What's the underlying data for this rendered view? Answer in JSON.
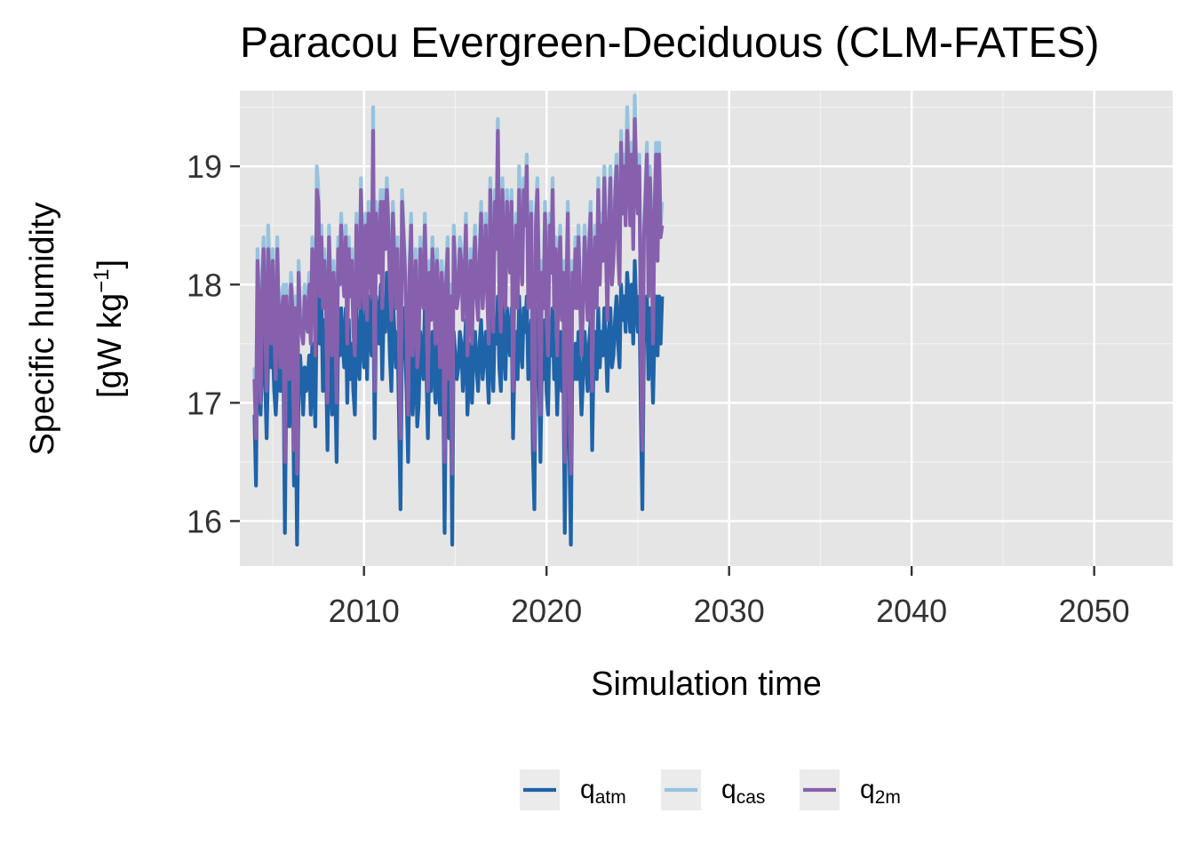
{
  "chart_data": {
    "type": "line",
    "title": "Paracou Evergreen-Deciduous (CLM-FATES)",
    "xlabel": "Simulation time",
    "ylabel_line1": "Specific humidity",
    "ylabel_unit_prefix": "[gW kg",
    "ylabel_unit_sup": "−1",
    "ylabel_unit_suffix": "]",
    "xlim": [
      2003.2,
      2054.3
    ],
    "ylim": [
      15.62,
      19.64
    ],
    "x_ticks": [
      2010,
      2020,
      2030,
      2040,
      2050
    ],
    "x_tick_labels": [
      "2010",
      "2020",
      "2030",
      "2040",
      "2050"
    ],
    "y_ticks": [
      16,
      17,
      18,
      19
    ],
    "y_tick_labels": [
      "16",
      "17",
      "18",
      "19"
    ],
    "grid": true,
    "legend_position": "bottom",
    "x_start": 2004.0,
    "x_step": 0.08333,
    "series": [
      {
        "name_main": "q",
        "name_sub": "atm",
        "color": "#1f63a8",
        "values": [
          16.9,
          16.3,
          17.8,
          17.1,
          16.9,
          17.3,
          17.9,
          17.2,
          16.7,
          17.4,
          17.7,
          17.3,
          17.5,
          17.1,
          16.9,
          17.2,
          17.7,
          17.1,
          17.3,
          17.4,
          15.9,
          17.3,
          17.2,
          16.8,
          17.2,
          17.3,
          16.3,
          17.1,
          15.8,
          17.1,
          17.4,
          17.2,
          16.9,
          17.3,
          17.1,
          17.2,
          17.4,
          16.9,
          17.5,
          17.2,
          16.8,
          17.9,
          18.0,
          17.5,
          17.9,
          17.1,
          17.7,
          17.4,
          16.6,
          17.6,
          17.3,
          16.9,
          17.4,
          17.2,
          16.5,
          17.6,
          17.4,
          17.8,
          17.5,
          17.3,
          17.8,
          17.0,
          17.7,
          17.2,
          17.5,
          17.1,
          16.9,
          17.8,
          17.4,
          17.2,
          17.9,
          17.5,
          17.3,
          17.8,
          17.2,
          17.9,
          17.6,
          17.4,
          18.1,
          16.7,
          17.9,
          17.7,
          17.5,
          18.0,
          17.2,
          17.8,
          17.6,
          18.1,
          17.9,
          17.4,
          17.1,
          17.9,
          17.6,
          17.3,
          17.6,
          16.9,
          16.1,
          17.6,
          17.8,
          17.5,
          17.1,
          16.5,
          17.4,
          17.8,
          16.9,
          17.2,
          17.5,
          16.8,
          17.0,
          17.6,
          17.4,
          17.2,
          17.8,
          17.3,
          16.7,
          17.4,
          17.1,
          17.6,
          17.3,
          17.0,
          17.5,
          17.2,
          16.9,
          17.5,
          17.3,
          15.9,
          17.4,
          17.6,
          16.7,
          17.3,
          15.8,
          17.6,
          17.4,
          17.2,
          17.3,
          17.6,
          17.5,
          17.1,
          17.4,
          17.7,
          16.9,
          17.2,
          17.5,
          17.0,
          17.4,
          17.6,
          17.3,
          17.1,
          17.5,
          17.7,
          17.2,
          17.4,
          17.6,
          17.3,
          17.0,
          17.8,
          17.4,
          17.1,
          17.7,
          17.5,
          17.9,
          17.3,
          17.1,
          17.9,
          17.5,
          17.2,
          17.8,
          17.6,
          17.4,
          17.8,
          16.7,
          17.4,
          17.6,
          17.2,
          17.9,
          17.5,
          17.3,
          17.8,
          17.6,
          17.9,
          17.2,
          17.5,
          17.7,
          16.6,
          16.1,
          17.6,
          17.8,
          17.3,
          16.5,
          17.4,
          17.2,
          17.7,
          17.1,
          16.9,
          17.6,
          17.4,
          17.8,
          17.2,
          17.5,
          16.9,
          17.4,
          17.6,
          17.1,
          17.4,
          15.9,
          17.3,
          17.7,
          16.6,
          15.8,
          17.4,
          17.2,
          17.5,
          17.2,
          17.6,
          17.3,
          16.9,
          17.2,
          17.6,
          17.4,
          17.1,
          17.5,
          17.7,
          16.6,
          17.4,
          17.6,
          17.2,
          17.8,
          17.3,
          17.6,
          17.4,
          17.8,
          17.5,
          17.1,
          17.6,
          17.8,
          17.3,
          17.4,
          17.7,
          17.9,
          17.5,
          17.3,
          18.0,
          17.7,
          17.9,
          17.6,
          18.1,
          17.9,
          17.6,
          18.0,
          17.5,
          18.2,
          17.8,
          17.6,
          17.9,
          16.9,
          16.1,
          17.5,
          17.7,
          17.9,
          17.2,
          17.8,
          17.5,
          17.0,
          17.6,
          17.9,
          17.4,
          17.9,
          17.5,
          17.9
        ]
      },
      {
        "name_main": "q",
        "name_sub": "cas",
        "color": "#96c3de",
        "values": [
          17.3,
          16.8,
          18.3,
          17.9,
          17.1,
          18.1,
          18.4,
          17.8,
          17.2,
          18.5,
          18.1,
          17.6,
          18.3,
          17.7,
          17.3,
          18.4,
          17.8,
          17.4,
          17.9,
          18.0,
          16.6,
          18.0,
          17.7,
          17.3,
          18.1,
          17.9,
          16.7,
          17.9,
          16.5,
          18.2,
          17.8,
          17.7,
          17.6,
          18.0,
          17.8,
          17.7,
          18.1,
          17.6,
          18.4,
          18.3,
          17.5,
          19.0,
          18.8,
          18.0,
          18.5,
          17.9,
          18.3,
          18.0,
          17.1,
          18.5,
          18.0,
          17.5,
          18.2,
          17.9,
          17.1,
          18.4,
          18.1,
          18.6,
          18.2,
          18.0,
          18.5,
          17.6,
          18.4,
          18.0,
          18.3,
          17.7,
          17.5,
          18.6,
          18.1,
          17.9,
          18.9,
          18.2,
          17.9,
          18.6,
          17.8,
          18.7,
          18.3,
          18.0,
          19.5,
          17.2,
          18.7,
          18.4,
          18.2,
          18.8,
          17.9,
          18.8,
          18.4,
          18.9,
          18.6,
          18.1,
          17.8,
          18.7,
          18.3,
          17.9,
          18.4,
          17.6,
          16.8,
          18.8,
          18.5,
          18.2,
          17.7,
          17.0,
          18.2,
          18.6,
          17.5,
          17.9,
          18.3,
          17.4,
          17.6,
          18.4,
          18.1,
          17.9,
          18.6,
          18.0,
          17.2,
          18.2,
          17.8,
          18.4,
          18.0,
          17.6,
          18.3,
          17.9,
          17.4,
          18.2,
          18.0,
          16.6,
          18.1,
          18.4,
          17.3,
          18.0,
          16.5,
          18.5,
          18.2,
          17.9,
          18.0,
          18.4,
          18.3,
          17.8,
          18.1,
          18.6,
          17.5,
          17.9,
          18.3,
          17.6,
          18.2,
          18.5,
          18.0,
          17.8,
          18.3,
          18.7,
          17.9,
          18.2,
          18.6,
          18.0,
          17.6,
          18.9,
          18.1,
          17.7,
          18.8,
          18.4,
          19.4,
          18.0,
          17.7,
          18.9,
          18.3,
          17.9,
          18.8,
          18.5,
          18.2,
          18.8,
          17.2,
          18.2,
          18.6,
          17.9,
          19.0,
          18.4,
          18.1,
          18.9,
          18.6,
          19.1,
          17.9,
          18.4,
          18.7,
          17.1,
          16.7,
          18.6,
          18.9,
          18.1,
          17.0,
          18.2,
          17.9,
          18.7,
          17.8,
          17.5,
          18.6,
          18.2,
          18.9,
          17.9,
          18.4,
          17.5,
          18.2,
          18.5,
          17.8,
          18.2,
          16.6,
          18.0,
          18.7,
          17.2,
          16.5,
          18.2,
          17.9,
          18.4,
          17.9,
          18.5,
          18.0,
          17.5,
          17.9,
          18.5,
          18.2,
          17.8,
          18.4,
          18.7,
          17.2,
          18.2,
          18.5,
          17.9,
          18.9,
          18.1,
          18.6,
          18.3,
          19.0,
          18.4,
          17.8,
          18.6,
          19.0,
          18.1,
          18.3,
          18.8,
          19.1,
          18.4,
          18.1,
          19.3,
          18.7,
          19.1,
          18.6,
          19.5,
          19.1,
          18.6,
          19.2,
          18.4,
          19.6,
          19.0,
          18.7,
          19.1,
          17.6,
          16.7,
          18.5,
          18.8,
          19.2,
          18.0,
          19.0,
          18.5,
          17.6,
          18.7,
          19.2,
          18.3,
          19.2,
          18.5,
          18.7
        ]
      },
      {
        "name_main": "q",
        "name_sub": "2m",
        "color": "#8760ad",
        "values": [
          17.2,
          16.7,
          18.2,
          17.8,
          17.0,
          17.9,
          18.3,
          17.7,
          17.1,
          18.3,
          18.0,
          17.5,
          18.2,
          17.6,
          17.2,
          18.3,
          17.7,
          17.3,
          17.8,
          17.9,
          16.5,
          17.9,
          17.6,
          17.2,
          18.0,
          17.8,
          16.6,
          17.8,
          16.4,
          18.1,
          17.7,
          17.6,
          17.5,
          17.9,
          17.7,
          17.6,
          18.0,
          17.5,
          18.3,
          18.2,
          17.4,
          18.8,
          18.7,
          17.9,
          18.4,
          17.8,
          18.2,
          17.9,
          17.0,
          18.4,
          17.9,
          17.4,
          18.1,
          17.8,
          17.0,
          18.3,
          18.0,
          18.5,
          18.1,
          17.9,
          18.4,
          17.5,
          18.3,
          17.9,
          18.2,
          17.6,
          17.4,
          18.5,
          18.0,
          17.8,
          18.8,
          18.1,
          17.8,
          18.5,
          17.7,
          18.6,
          18.2,
          17.9,
          19.3,
          17.1,
          18.6,
          18.3,
          18.1,
          18.7,
          17.8,
          18.7,
          18.3,
          18.8,
          18.5,
          18.0,
          17.7,
          18.6,
          18.2,
          17.8,
          18.3,
          17.5,
          16.7,
          18.7,
          18.4,
          18.1,
          17.6,
          16.9,
          18.1,
          18.5,
          17.4,
          17.8,
          18.2,
          17.3,
          17.5,
          18.3,
          18.0,
          17.8,
          18.5,
          17.9,
          17.1,
          18.1,
          17.7,
          18.3,
          17.9,
          17.5,
          18.2,
          17.8,
          17.3,
          18.1,
          17.9,
          16.5,
          18.0,
          18.3,
          17.2,
          17.9,
          16.4,
          18.4,
          18.1,
          17.8,
          17.9,
          18.3,
          18.2,
          17.7,
          18.0,
          18.5,
          17.4,
          17.8,
          18.2,
          17.5,
          18.1,
          18.4,
          17.9,
          17.7,
          18.2,
          18.6,
          17.8,
          18.1,
          18.5,
          17.9,
          17.5,
          18.8,
          18.0,
          17.6,
          18.7,
          18.3,
          19.3,
          17.9,
          17.6,
          18.8,
          18.2,
          17.8,
          18.7,
          18.4,
          18.1,
          18.7,
          17.1,
          18.1,
          18.5,
          17.8,
          18.8,
          18.3,
          18.0,
          18.8,
          18.5,
          19.0,
          17.8,
          18.3,
          18.6,
          17.0,
          16.6,
          18.5,
          18.8,
          18.0,
          16.9,
          18.1,
          17.8,
          18.6,
          17.7,
          17.4,
          18.5,
          18.1,
          18.8,
          17.8,
          18.3,
          17.4,
          18.1,
          18.4,
          17.7,
          18.1,
          16.5,
          17.9,
          18.6,
          17.1,
          16.4,
          18.1,
          17.8,
          18.3,
          17.8,
          18.4,
          17.9,
          17.4,
          17.8,
          18.4,
          18.1,
          17.7,
          18.3,
          18.6,
          17.1,
          18.1,
          18.4,
          17.8,
          18.8,
          18.0,
          18.5,
          18.2,
          18.9,
          18.3,
          17.7,
          18.5,
          18.9,
          18.0,
          18.2,
          18.7,
          19.0,
          18.3,
          18.0,
          19.2,
          18.6,
          19.0,
          18.5,
          19.3,
          19.0,
          18.5,
          19.1,
          18.3,
          19.4,
          18.9,
          18.6,
          19.0,
          17.5,
          16.6,
          18.4,
          18.7,
          19.1,
          17.9,
          18.9,
          18.4,
          17.5,
          18.6,
          19.1,
          18.2,
          19.1,
          18.4,
          18.5
        ]
      }
    ]
  }
}
